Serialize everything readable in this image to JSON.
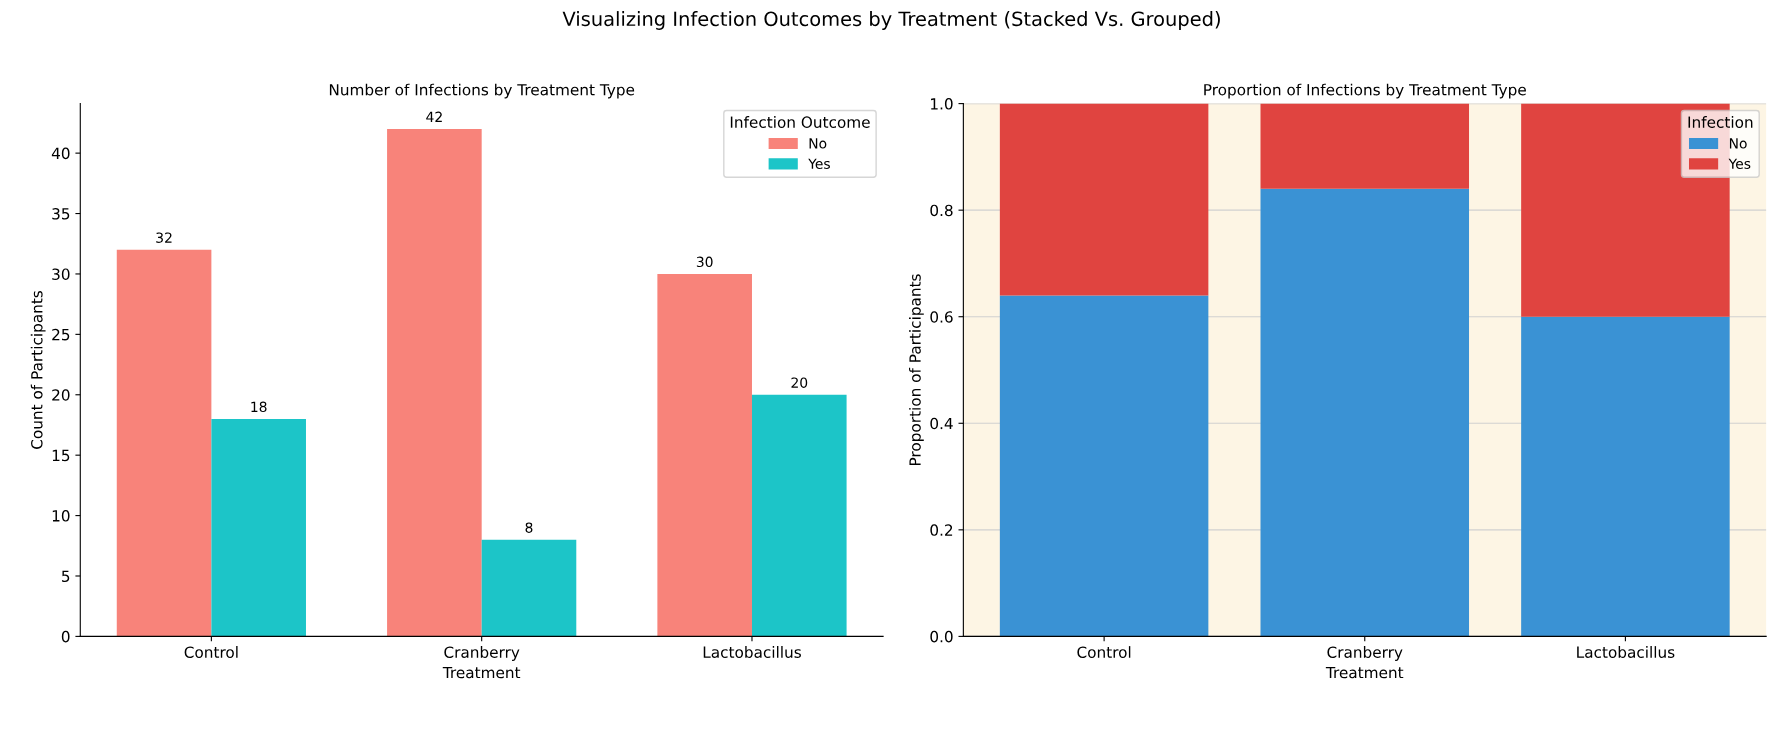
{
  "chart_data": [
    {
      "type": "bar",
      "title": "Number of Infections by Treatment Type",
      "xlabel": "Treatment",
      "ylabel": "Count of Participants",
      "legend_title": "Infection Outcome",
      "annotations": [
        "Visualizing Infection Outcomes by Treatment (Stacked Vs. Grouped)"
      ],
      "categories": [
        "Control",
        "Cranberry",
        "Lactobacillus"
      ],
      "series": [
        {
          "name": "No",
          "color": "#f8837a",
          "values": [
            32,
            42,
            30
          ]
        },
        {
          "name": "Yes",
          "color": "#1cc5c8",
          "values": [
            18,
            8,
            20
          ]
        }
      ],
      "ylim": [
        0,
        44.1
      ],
      "yticks": [
        0,
        5,
        10,
        15,
        20,
        25,
        30,
        35,
        40
      ],
      "data_labels": true,
      "legend": "top right",
      "grid": false
    },
    {
      "type": "bar",
      "title": "Proportion of Infections by Treatment Type",
      "xlabel": "Treatment",
      "ylabel": "Proportion of Participants",
      "legend_title": "Infection",
      "categories": [
        "Control",
        "Cranberry",
        "Lactobacillus"
      ],
      "stacked": true,
      "series": [
        {
          "name": "No",
          "color": "#3a92d4",
          "values": [
            0.64,
            0.84,
            0.6
          ]
        },
        {
          "name": "Yes",
          "color": "#e04440",
          "values": [
            0.36,
            0.16,
            0.4
          ]
        }
      ],
      "ylim": [
        0,
        1
      ],
      "yticks": [
        {
          "value": 0,
          "label": "0.0"
        },
        {
          "value": 0.2,
          "label": "0.2"
        },
        {
          "value": 0.4,
          "label": "0.4"
        },
        {
          "value": 0.6,
          "label": "0.6"
        },
        {
          "value": 0.8,
          "label": "0.8"
        },
        {
          "value": 1,
          "label": "1.0"
        }
      ],
      "legend": "top right",
      "grid": "y"
    }
  ]
}
